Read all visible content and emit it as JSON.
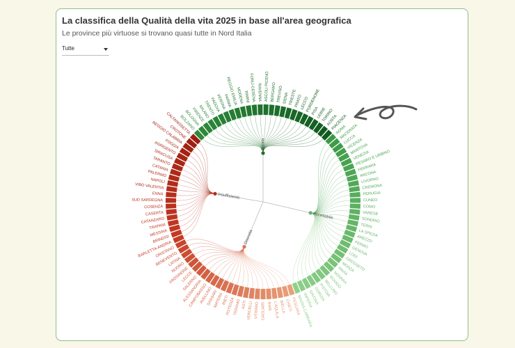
{
  "header": {
    "title": "La classifica della Qualità della vita 2025 in base all'area geografica",
    "subtitle": "Le province più virtuose si trovano quasi tutte in Nord Italia",
    "filter": "Tutte"
  },
  "chart_data": {
    "type": "dendrogram",
    "groups": [
      {
        "name": "Buona",
        "colors": [
          "#2f8a3a",
          "#0f5a1f"
        ],
        "leaves": [
          "BOLZANO",
          "BOLOGNA",
          "FIRENZE",
          "MILANO",
          "TRENTO",
          "PADOVA",
          "VERONA",
          "PARMA",
          "REGGIO EMILIA",
          "MODENA",
          "RIMINI",
          "FORLÌ-CESENA",
          "RAVENNA",
          "ASCOLI PICENO",
          "BERGAMO",
          "TREVISO",
          "SIENA",
          "TRIESTE",
          "PRATO",
          "LECCO",
          "PORDENONE",
          "PISA",
          "UDINE",
          "TORINO",
          "AOSTA",
          "PIACENZA"
        ]
      },
      {
        "name": "Accettabile",
        "colors": [
          "#3a9a45",
          "#8fd08a"
        ],
        "leaves": [
          "ROMA",
          "MACERATA",
          "LUCCA",
          "VICENZA",
          "MANTOVA",
          "VENEZIA",
          "PESARO E URBINO",
          "FERRARA",
          "ANCONA",
          "LIVORNO",
          "CREMONA",
          "PERUGIA",
          "CUNEO",
          "COMO",
          "VARESE",
          "SONDRIO",
          "TERNI",
          "LA SPEZIA",
          "AREZZO",
          "FERMO",
          "GENOVA",
          "LODI",
          "GROSSETO",
          "MONZA",
          "PAVIA",
          "NOVARA",
          "ROVIGO",
          "BELLUNO",
          "PISTOIA",
          "GORIZIA",
          "SAVONA",
          "IMPERIA",
          "MASSA-CARRARA"
        ]
      },
      {
        "name": "Discreta",
        "colors": [
          "#e8a07a",
          "#c9452b"
        ],
        "leaves": [
          "PESCARA",
          "CHIETI",
          "BIELLA",
          "L'AQUILA",
          "BARI",
          "CAGLIARI",
          "VITERBO",
          "VERCELLI",
          "ASTI",
          "TERAMO",
          "POTENZA",
          "RIETI",
          "MATERA",
          "SASSARI",
          "AVELLINO",
          "CAMPOBASSO",
          "ALESSANDRIA",
          "SALERNO",
          "LECCE",
          "FROSINONE",
          "NUORO",
          "LATINA",
          "BENEVENTO",
          "ORISTANO"
        ]
      },
      {
        "name": "Insufficiente",
        "colors": [
          "#c63a25",
          "#9e1f10"
        ],
        "leaves": [
          "BARLETTA-ANDRIA",
          "BRINDISI",
          "MESSINA",
          "TRAPANI",
          "CATANZARO",
          "CASERTA",
          "COSENZA",
          "SUD SARDEGNA",
          "ENNA",
          "VIBO VALENTIA",
          "NAPOLI",
          "PALERMO",
          "CATANIA",
          "TARANTO",
          "SIRACUSA",
          "AGRIGENTO",
          "FOGGIA",
          "REGGIO CALABRIA",
          "CROTONE",
          "CALTANISSETTA"
        ]
      }
    ]
  }
}
